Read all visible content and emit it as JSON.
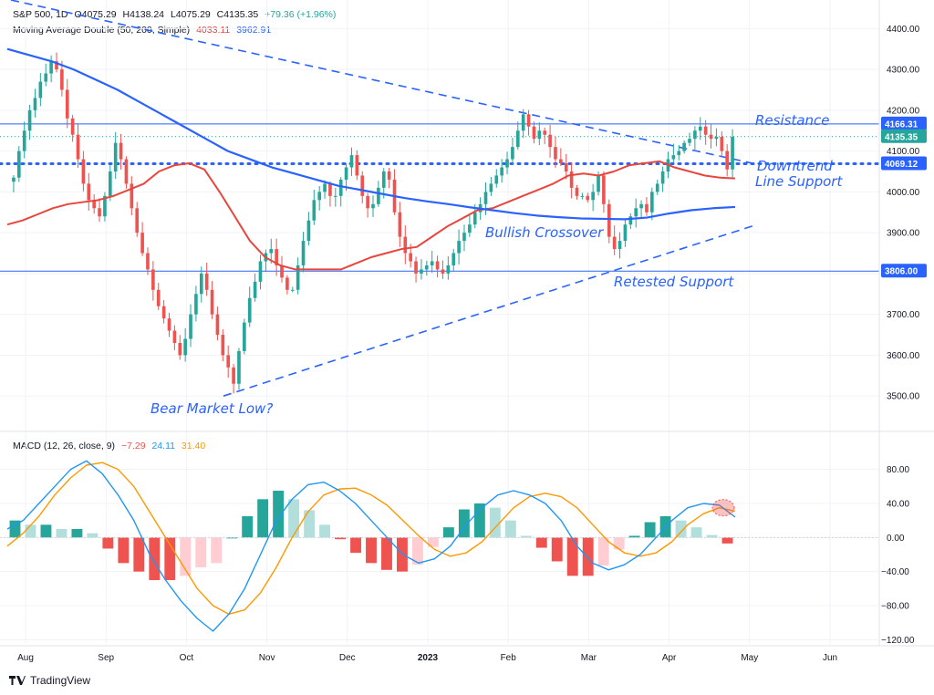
{
  "colors": {
    "up": "#26a69a",
    "down": "#ef5350",
    "up_light": "#b2dfdb",
    "down_light": "#ffcdd2",
    "blue": "#2962ff",
    "ma50": "#e8453c",
    "ma200": "#2962ff",
    "macd": "#2196f3",
    "signal": "#ff9800"
  },
  "legend": {
    "symbol": "S&P 500, 1D",
    "open": "O4075.29",
    "high": "H4138.24",
    "low": "L4075.29",
    "close": "C4135.35",
    "change": "+79.36 (+1.96%)",
    "ma_name": "Moving Average Double (50, 200, Simple)",
    "ma_fast": "4033.11",
    "ma_slow": "3962.91",
    "macd_name": "MACD (12, 26, close, 9)",
    "macd_hist": "−7.29",
    "macd_line": "24.11",
    "macd_signal": "31.40"
  },
  "annotations": {
    "resistance": "Resistance",
    "downtrend": "Downtrend",
    "line_support": "Line Support",
    "bullish": "Bullish Crossover",
    "retested": "Retested Support",
    "bear_low": "Bear Market Low?"
  },
  "brand": "TradingView",
  "chart_data": [
    {
      "type": "candlestick",
      "title": "S&P 500, 1D",
      "ylim": [
        3420,
        4470
      ],
      "y_ticks": [
        3500,
        3600,
        3700,
        3800,
        3900,
        4000,
        4100,
        4200,
        4300,
        4400
      ],
      "x_ticks": [
        "Aug",
        "Sep",
        "Oct",
        "Nov",
        "Dec",
        "2023",
        "Feb",
        "Mar",
        "Apr",
        "May",
        "Jun"
      ],
      "price_labels": [
        {
          "value": 4166.31,
          "label": "4166.31"
        },
        {
          "value": 4135.35,
          "label": "4135.35"
        },
        {
          "value": 4069.12,
          "label": "4069.12"
        },
        {
          "value": 3806.0,
          "label": "3806.00"
        }
      ],
      "trend_path": [
        4035,
        4100,
        4150,
        4200,
        4230,
        4270,
        4290,
        4320,
        4300,
        4250,
        4180,
        4140,
        4080,
        4020,
        3980,
        3960,
        3940,
        3990,
        4050,
        4120,
        4080,
        4020,
        3960,
        3900,
        3850,
        3810,
        3760,
        3720,
        3690,
        3660,
        3630,
        3600,
        3640,
        3700,
        3750,
        3800,
        3760,
        3700,
        3650,
        3600,
        3570,
        3530,
        3610,
        3680,
        3740,
        3780,
        3830,
        3850,
        3860,
        3820,
        3790,
        3760,
        3760,
        3820,
        3880,
        3930,
        3980,
        4000,
        4020,
        3990,
        3990,
        4030,
        4060,
        4090,
        4040,
        3990,
        3960,
        3970,
        4010,
        4050,
        4030,
        3950,
        3890,
        3850,
        3830,
        3800,
        3810,
        3820,
        3830,
        3810,
        3800,
        3820,
        3850,
        3880,
        3900,
        3920,
        3950,
        3970,
        4000,
        4020,
        4040,
        4060,
        4080,
        4110,
        4150,
        4190,
        4160,
        4130,
        4150,
        4140,
        4110,
        4080,
        4070,
        4050,
        4010,
        3990,
        3990,
        3980,
        4000,
        4040,
        3970,
        3890,
        3860,
        3880,
        3920,
        3940,
        3960,
        3970,
        3950,
        4000,
        4020,
        4050,
        4080,
        4090,
        4100,
        4120,
        4130,
        4150,
        4160,
        4140,
        4130,
        4135,
        4100,
        4055,
        4135
      ],
      "ma50": [
        3920,
        3930,
        3945,
        3960,
        3970,
        3975,
        3980,
        3990,
        4005,
        4020,
        4050,
        4065,
        4070,
        4055,
        4000,
        3940,
        3880,
        3840,
        3820,
        3810,
        3810,
        3810,
        3810,
        3825,
        3840,
        3850,
        3860,
        3865,
        3890,
        3915,
        3935,
        3955,
        3960,
        3975,
        3990,
        4005,
        4020,
        4040,
        4045,
        4040,
        4050,
        4065,
        4070,
        4075,
        4060,
        4050,
        4040,
        4035,
        4033
      ],
      "ma200": [
        4350,
        4335,
        4320,
        4300,
        4275,
        4250,
        4220,
        4190,
        4160,
        4130,
        4100,
        4080,
        4060,
        4045,
        4030,
        4015,
        4005,
        3995,
        3985,
        3977,
        3970,
        3962,
        3955,
        3948,
        3942,
        3938,
        3935,
        3934,
        3933,
        3937,
        3947,
        3955,
        3960,
        3963
      ],
      "resistance": 4166.31,
      "support": 3806.0,
      "dotted_level": 4069.12,
      "dotted_level_2": 4135.35,
      "downtrend_line": {
        "start": 4470,
        "end": 4070
      },
      "uptrend_line": {
        "start": 3500,
        "end": 3920
      }
    },
    {
      "type": "bar+line",
      "title": "MACD (12, 26, close, 9)",
      "ylim": [
        -125,
        100
      ],
      "y_ticks": [
        -120,
        -80,
        -40,
        0,
        40,
        80
      ],
      "macd": [
        10,
        20,
        40,
        60,
        80,
        90,
        75,
        50,
        20,
        -20,
        -50,
        -75,
        -95,
        -110,
        -90,
        -60,
        -20,
        20,
        45,
        62,
        65,
        55,
        40,
        20,
        0,
        -20,
        -30,
        -25,
        -10,
        15,
        35,
        50,
        55,
        50,
        40,
        20,
        -10,
        -30,
        -38,
        -32,
        -20,
        0,
        20,
        35,
        40,
        38,
        24
      ],
      "signal": [
        -10,
        5,
        25,
        50,
        70,
        85,
        88,
        80,
        60,
        30,
        0,
        -30,
        -60,
        -80,
        -90,
        -85,
        -65,
        -35,
        0,
        30,
        50,
        57,
        58,
        50,
        38,
        20,
        2,
        -14,
        -22,
        -18,
        -5,
        15,
        35,
        48,
        52,
        48,
        35,
        15,
        -5,
        -18,
        -22,
        -18,
        -5,
        15,
        28,
        35,
        31
      ],
      "hist": [
        20,
        15,
        15,
        10,
        10,
        5,
        -13,
        -30,
        -40,
        -50,
        -50,
        -45,
        -35,
        -30,
        0,
        25,
        45,
        55,
        45,
        32,
        15,
        -2,
        -18,
        -30,
        -38,
        -40,
        -32,
        -11,
        12,
        33,
        40,
        35,
        20,
        2,
        -12,
        -28,
        -45,
        -45,
        -33,
        -14,
        2,
        18,
        25,
        20,
        12,
        3,
        -7
      ]
    }
  ]
}
